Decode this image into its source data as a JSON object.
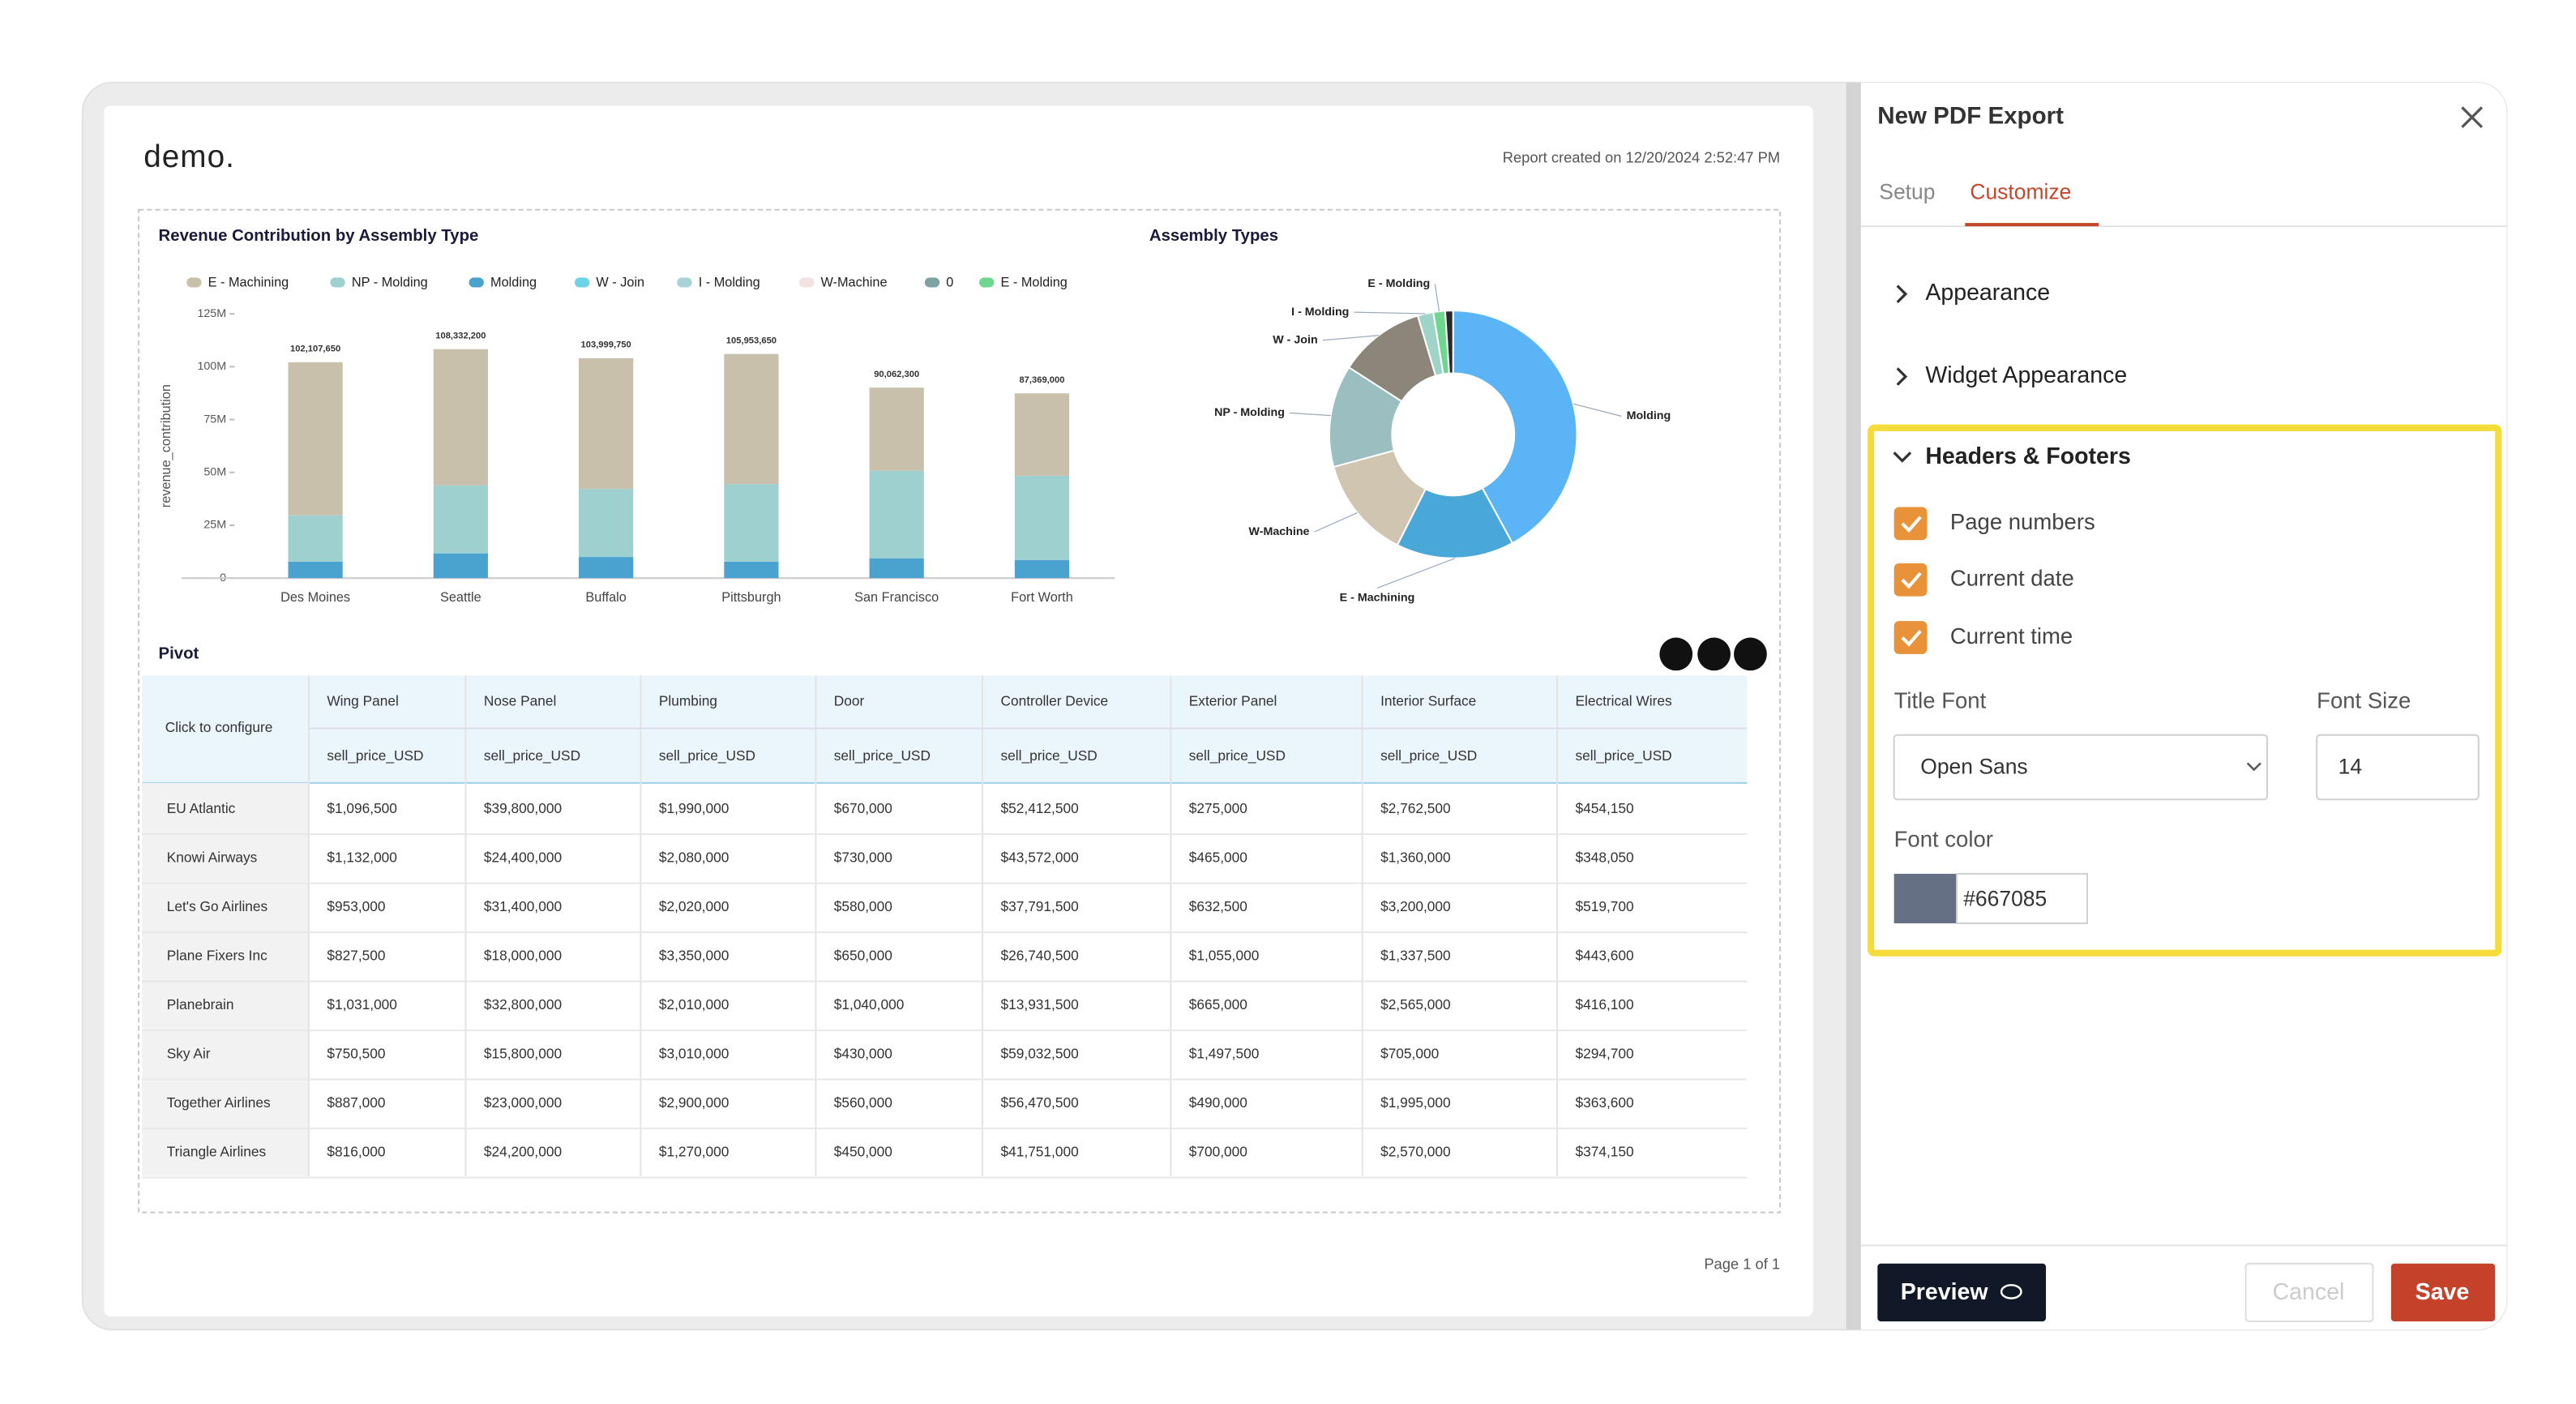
{
  "report": {
    "logo": "demo.",
    "created": "Report created on 12/20/2024 2:52:47 PM",
    "footer": "Page 1 of 1"
  },
  "chart_data": [
    {
      "type": "bar",
      "title": "Revenue Contribution by Assembly Type",
      "y_label": "revenue_contribution",
      "categories": [
        "Des Moines",
        "Seattle",
        "Buffalo",
        "Pittsburgh",
        "San Francisco",
        "Fort Worth"
      ],
      "series": [
        {
          "name": "E - Machining",
          "color": "#c9c0ab",
          "values": [
            72400000,
            64500000,
            61800000,
            61500000,
            39300000,
            39000000
          ]
        },
        {
          "name": "NP - Molding",
          "color": "#9fd0d0",
          "values": [
            21900000,
            32100000,
            32200000,
            36700000,
            41400000,
            39800000
          ]
        },
        {
          "name": "Molding",
          "color": "#4aa3cf",
          "values": [
            7800000,
            11700000,
            10000000,
            7800000,
            9400000,
            8600000
          ]
        },
        {
          "name": "W - Join",
          "color": "#6fd3e8",
          "values": [
            0,
            0,
            0,
            0,
            0,
            0
          ]
        },
        {
          "name": "I - Molding",
          "color": "#a8d4d8",
          "values": [
            0,
            0,
            0,
            0,
            0,
            0
          ]
        },
        {
          "name": "W-Machine",
          "color": "#f2e2e2",
          "values": [
            0,
            0,
            0,
            0,
            0,
            0
          ]
        },
        {
          "name": "0",
          "color": "#7fa3a3",
          "values": [
            0,
            0,
            0,
            0,
            0,
            0
          ]
        },
        {
          "name": "E - Molding",
          "color": "#6fd68f",
          "values": [
            0,
            0,
            0,
            0,
            0,
            0
          ]
        }
      ],
      "totals": {
        "values": [
          102107650,
          108332200,
          103999750,
          105953650,
          90062300,
          87369000
        ],
        "value_labels": [
          "102,107,650",
          "108,332,200",
          "103,999,750",
          "105,953,650",
          "90,062,300",
          "87,369,000"
        ]
      },
      "ylim": [
        0,
        125000000
      ],
      "yticks": [
        {
          "value": 0,
          "label": "0"
        },
        {
          "value": 25000000,
          "label": "25M"
        },
        {
          "value": 50000000,
          "label": "50M"
        },
        {
          "value": 75000000,
          "label": "75M"
        },
        {
          "value": 100000000,
          "label": "100M"
        },
        {
          "value": 125000000,
          "label": "125M"
        }
      ],
      "grid": false
    },
    {
      "type": "pie",
      "title": "Assembly Types",
      "categories": [
        "Molding",
        "E - Machining",
        "W-Machine",
        "NP - Molding",
        "W - Join",
        "I - Molding",
        "E - Molding",
        null
      ],
      "values": [
        41,
        15,
        13,
        13,
        11,
        2,
        1.5,
        1
      ],
      "colors": [
        "#5ab4f5",
        "#4aa8d8",
        "#cfc5b0",
        "#9bbfc0",
        "#8c8579",
        "#9fd4c8",
        "#6fd68f",
        "#2a2a2a"
      ],
      "donut": true
    }
  ],
  "pivot": {
    "title": "Pivot",
    "corner": "Click to configure",
    "measure": "sell_price_USD",
    "columns": [
      "Wing Panel",
      "Nose Panel",
      "Plumbing",
      "Door",
      "Controller Device",
      "Exterior Panel",
      "Interior Surface",
      "Electrical Wires"
    ],
    "rows": [
      {
        "label": "EU Atlantic",
        "cells": [
          "$1,096,500",
          "$39,800,000",
          "$1,990,000",
          "$670,000",
          "$52,412,500",
          "$275,000",
          "$2,762,500",
          "$454,150"
        ]
      },
      {
        "label": "Knowi Airways",
        "cells": [
          "$1,132,000",
          "$24,400,000",
          "$2,080,000",
          "$730,000",
          "$43,572,000",
          "$465,000",
          "$1,360,000",
          "$348,050"
        ]
      },
      {
        "label": "Let's Go Airlines",
        "cells": [
          "$953,000",
          "$31,400,000",
          "$2,020,000",
          "$580,000",
          "$37,791,500",
          "$632,500",
          "$3,200,000",
          "$519,700"
        ]
      },
      {
        "label": "Plane Fixers Inc",
        "cells": [
          "$827,500",
          "$18,000,000",
          "$3,350,000",
          "$650,000",
          "$26,740,500",
          "$1,055,000",
          "$1,337,500",
          "$443,600"
        ]
      },
      {
        "label": "Planebrain",
        "cells": [
          "$1,031,000",
          "$32,800,000",
          "$2,010,000",
          "$1,040,000",
          "$13,931,500",
          "$665,000",
          "$2,565,000",
          "$416,100"
        ]
      },
      {
        "label": "Sky Air",
        "cells": [
          "$750,500",
          "$15,800,000",
          "$3,010,000",
          "$430,000",
          "$59,032,500",
          "$1,497,500",
          "$705,000",
          "$294,700"
        ]
      },
      {
        "label": "Together Airlines",
        "cells": [
          "$887,000",
          "$23,000,000",
          "$2,900,000",
          "$560,000",
          "$56,470,500",
          "$490,000",
          "$1,995,000",
          "$363,600"
        ]
      },
      {
        "label": "Triangle Airlines",
        "cells": [
          "$816,000",
          "$24,200,000",
          "$1,270,000",
          "$450,000",
          "$41,751,000",
          "$700,000",
          "$2,570,000",
          "$374,150"
        ]
      }
    ]
  },
  "panel": {
    "title": "New PDF Export",
    "tabs": [
      "Setup",
      "Customize"
    ],
    "sections": [
      "Appearance",
      "Widget Appearance",
      "Headers & Footers"
    ],
    "checkboxes": [
      "Page numbers",
      "Current date",
      "Current time"
    ],
    "title_font_label": "Title Font",
    "title_font": "Open Sans",
    "font_size_label": "Font Size",
    "font_size": "14",
    "font_color_label": "Font color",
    "font_color": "#667085",
    "buttons": [
      "Preview",
      "Cancel",
      "Save"
    ]
  }
}
